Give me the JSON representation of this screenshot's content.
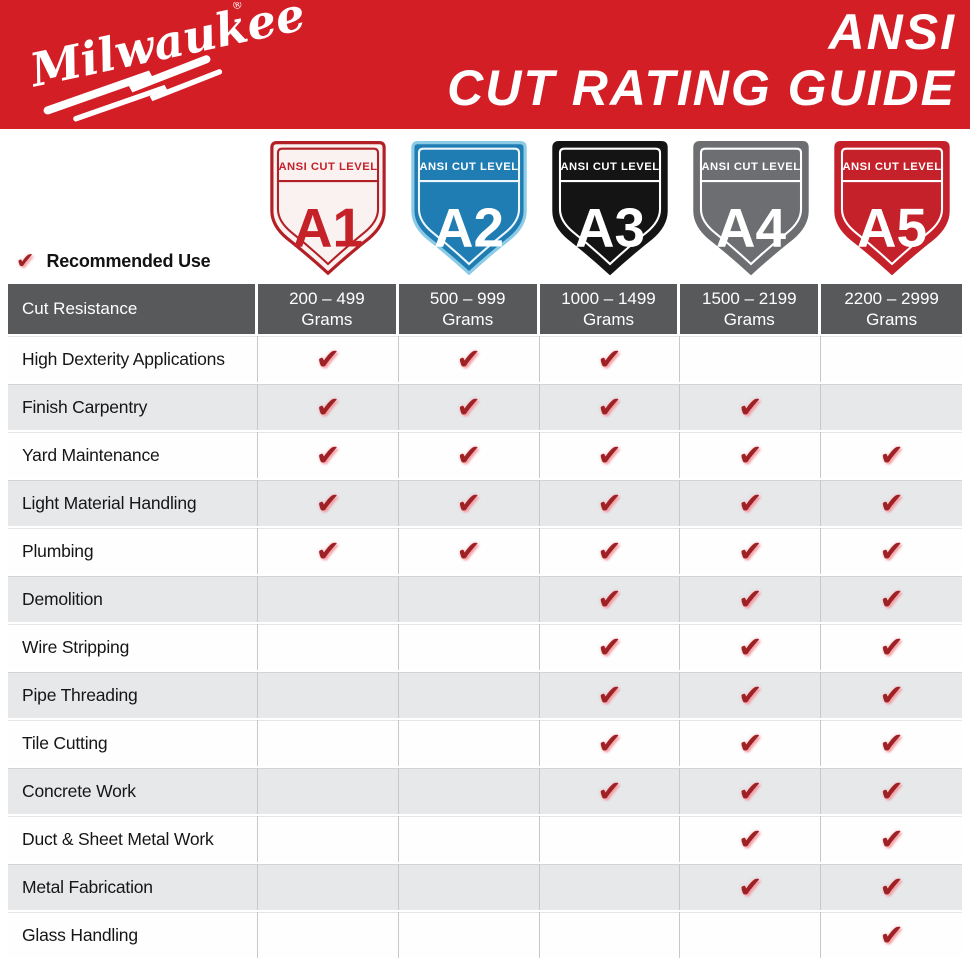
{
  "brand": {
    "logo_text": "Milwaukee",
    "registered_mark": "®"
  },
  "header": {
    "title_line1": "ANSI",
    "title_line2": "CUT RATING GUIDE",
    "bg_color": "#d31e26",
    "text_color": "#ffffff"
  },
  "legend": {
    "check_icon": "✔",
    "label": "Recommended Use"
  },
  "shields": [
    {
      "level": "A1",
      "band_label": "ANSI CUT LEVEL",
      "bg": "#faf1f1",
      "outer": "#b22026",
      "inner": "#b22026",
      "text": "#c42129"
    },
    {
      "level": "A2",
      "band_label": "ANSI CUT LEVEL",
      "bg": "#1f7db3",
      "outer": "#8ccbe6",
      "inner": "#eef7fc",
      "text": "#ffffff"
    },
    {
      "level": "A3",
      "band_label": "ANSI CUT LEVEL",
      "bg": "#141414",
      "outer": "#141414",
      "inner": "#ffffff",
      "text": "#ffffff"
    },
    {
      "level": "A4",
      "band_label": "ANSI CUT LEVEL",
      "bg": "#6d6e71",
      "outer": "#6d6e71",
      "inner": "#ffffff",
      "text": "#ffffff"
    },
    {
      "level": "A5",
      "band_label": "ANSI CUT LEVEL",
      "bg": "#c5212b",
      "outer": "#c5212b",
      "inner": "#ffffff",
      "text": "#ffffff"
    }
  ],
  "table": {
    "corner_header": "Cut Resistance",
    "header_bg": "#58595b",
    "alt_row_bg": "#e7e8ea",
    "check_color": "#9e2125",
    "check_icon": "✔",
    "columns": [
      {
        "range": "200 – 499",
        "unit": "Grams"
      },
      {
        "range": "500 – 999",
        "unit": "Grams"
      },
      {
        "range": "1000 – 1499",
        "unit": "Grams"
      },
      {
        "range": "1500 – 2199",
        "unit": "Grams"
      },
      {
        "range": "2200 – 2999",
        "unit": "Grams"
      }
    ],
    "rows": [
      {
        "label": "High Dexterity Applications",
        "checks": [
          true,
          true,
          true,
          false,
          false
        ]
      },
      {
        "label": "Finish Carpentry",
        "checks": [
          true,
          true,
          true,
          true,
          false
        ]
      },
      {
        "label": "Yard Maintenance",
        "checks": [
          true,
          true,
          true,
          true,
          true
        ]
      },
      {
        "label": "Light Material Handling",
        "checks": [
          true,
          true,
          true,
          true,
          true
        ]
      },
      {
        "label": "Plumbing",
        "checks": [
          true,
          true,
          true,
          true,
          true
        ]
      },
      {
        "label": "Demolition",
        "checks": [
          false,
          false,
          true,
          true,
          true
        ]
      },
      {
        "label": "Wire Stripping",
        "checks": [
          false,
          false,
          true,
          true,
          true
        ]
      },
      {
        "label": "Pipe Threading",
        "checks": [
          false,
          false,
          true,
          true,
          true
        ]
      },
      {
        "label": "Tile Cutting",
        "checks": [
          false,
          false,
          true,
          true,
          true
        ]
      },
      {
        "label": "Concrete Work",
        "checks": [
          false,
          false,
          true,
          true,
          true
        ]
      },
      {
        "label": "Duct & Sheet Metal Work",
        "checks": [
          false,
          false,
          false,
          true,
          true
        ]
      },
      {
        "label": "Metal Fabrication",
        "checks": [
          false,
          false,
          false,
          true,
          true
        ]
      },
      {
        "label": "Glass Handling",
        "checks": [
          false,
          false,
          false,
          false,
          true
        ]
      }
    ]
  }
}
